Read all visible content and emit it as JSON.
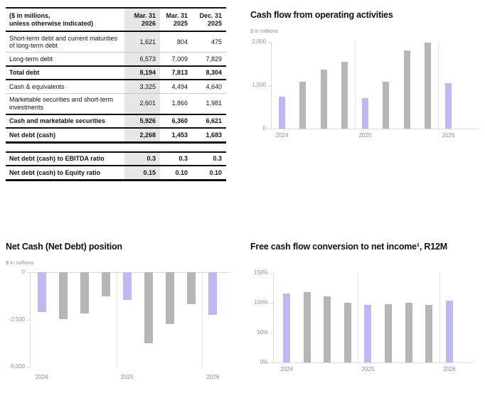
{
  "table": {
    "corner_label": "($ in millions,\nunless otherwise indicated)",
    "columns": [
      "Mar. 31\n2026",
      "Mar. 31\n2025",
      "Dec. 31\n2025"
    ],
    "highlight_column": 0,
    "highlight_color": "#e7e7e7",
    "rows": [
      {
        "label": "Short-term debt and current maturities of long-term debt",
        "values": [
          "1,621",
          "804",
          "475"
        ],
        "bold": false,
        "rule": "thin"
      },
      {
        "label": "Long-term debt",
        "values": [
          "6,573",
          "7,009",
          "7,829"
        ],
        "bold": false,
        "rule": "thick"
      },
      {
        "label": "Total debt",
        "values": [
          "8,194",
          "7,813",
          "8,304"
        ],
        "bold": true,
        "rule": "thick"
      },
      {
        "label": "Cash & equivalents",
        "values": [
          "3,325",
          "4,494",
          "4,640"
        ],
        "bold": false,
        "rule": "thin"
      },
      {
        "label": "Marketable securities and short-term investments",
        "values": [
          "2,601",
          "1,866",
          "1,981"
        ],
        "bold": false,
        "rule": "thick"
      },
      {
        "label": "Cash and marketable securities",
        "values": [
          "5,926",
          "6,360",
          "6,621"
        ],
        "bold": true,
        "rule": "thick"
      },
      {
        "label": "Net debt (cash)",
        "values": [
          "2,268",
          "1,453",
          "1,683"
        ],
        "bold": true,
        "rule": "end"
      }
    ],
    "ratio_rows": [
      {
        "label": "Net debt (cash) to EBITDA ratio",
        "values": [
          "0.3",
          "0.3",
          "0.3"
        ],
        "bold": true,
        "rule": "thick"
      },
      {
        "label": "Net debt (cash) to Equity ratio",
        "values": [
          "0.15",
          "0.10",
          "0.10"
        ],
        "bold": true,
        "rule": "end"
      }
    ]
  },
  "chart_data": [
    {
      "type": "bar",
      "title": "Cash flow from operating activities",
      "subtitle": "$ in millions",
      "categories": [
        "2024",
        "",
        "",
        "",
        "2025",
        "",
        "",
        "",
        "2026"
      ],
      "values": [
        740,
        1080,
        1360,
        1540,
        700,
        1080,
        1800,
        1980,
        1050
      ],
      "highlight_indices": [
        0,
        4,
        8
      ],
      "bar_color": "#b6b6b6",
      "highlight_color": "#bdb9f2",
      "ylim": [
        0,
        2000
      ],
      "yticks": [
        {
          "v": 2000,
          "label": "2,000"
        },
        {
          "v": 1000,
          "label": "1,000"
        },
        {
          "v": 0,
          "label": "0"
        }
      ],
      "grid": "year-separators",
      "legend": "none"
    },
    {
      "type": "bar",
      "title": "Net Cash (Net Debt) position",
      "subtitle": "$ in millions",
      "categories": [
        "2024",
        "",
        "",
        "",
        "2025",
        "",
        "",
        "",
        "2026"
      ],
      "values": [
        -2120,
        -2480,
        -2170,
        -1280,
        -1453,
        -3760,
        -2740,
        -1683,
        -2268
      ],
      "highlight_indices": [
        0,
        4,
        8
      ],
      "bar_color": "#b6b6b6",
      "highlight_color": "#bdb9f2",
      "ylim": [
        -5000,
        0
      ],
      "yticks": [
        {
          "v": 0,
          "label": "0"
        },
        {
          "v": -2500,
          "label": "-2,500"
        },
        {
          "v": -5000,
          "label": "-5,000"
        }
      ],
      "grid": "year-separators",
      "legend": "none"
    },
    {
      "type": "bar",
      "title": "Free cash flow conversion to net income¹, R12M",
      "subtitle": "",
      "categories": [
        "2024",
        "",
        "",
        "",
        "2025",
        "",
        "",
        "",
        "2026"
      ],
      "values": [
        115,
        118,
        111,
        100,
        97,
        98,
        100,
        96,
        103
      ],
      "highlight_indices": [
        0,
        4,
        8
      ],
      "bar_color": "#b6b6b6",
      "highlight_color": "#bdb9f2",
      "ylim": [
        0,
        150
      ],
      "yticks": [
        {
          "v": 150,
          "label": "150%"
        },
        {
          "v": 100,
          "label": "100%"
        },
        {
          "v": 50,
          "label": "50%"
        },
        {
          "v": 0,
          "label": "0%"
        }
      ],
      "grid": "year-separators",
      "legend": "none"
    }
  ]
}
